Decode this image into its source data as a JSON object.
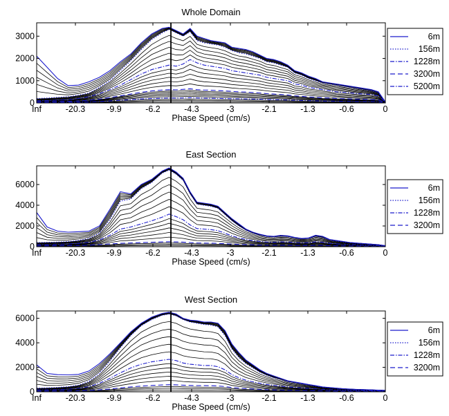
{
  "chart_data": [
    {
      "type": "line",
      "title": "Whole Domain",
      "xlabel": "Phase Speed (cm/s)",
      "ylabel": "",
      "xlim": [
        0,
        1
      ],
      "ylim": [
        0,
        3600
      ],
      "x_tick_labels": [
        "Inf",
        "-20.3",
        "-9.9",
        "-6.2",
        "-4.3",
        "-3",
        "-2.1",
        "-1.3",
        "-0.6",
        "0"
      ],
      "y_ticks": [
        0,
        1000,
        2000,
        3000
      ],
      "vertical_marker": 0.385,
      "legend": [
        {
          "name": "6m",
          "style": "solid",
          "color": "#1a1acc"
        },
        {
          "name": "156m",
          "style": "dotted",
          "color": "#1a1acc"
        },
        {
          "name": "1228m",
          "style": "dashdot",
          "color": "#1a1acc"
        },
        {
          "name": "3200m",
          "style": "dashed",
          "color": "#1a1acc"
        },
        {
          "name": "5200m",
          "style": "dashdot",
          "color": "#1a1acc"
        }
      ],
      "x": [
        0,
        0.03,
        0.06,
        0.09,
        0.12,
        0.15,
        0.18,
        0.21,
        0.24,
        0.27,
        0.3,
        0.33,
        0.36,
        0.38,
        0.4,
        0.42,
        0.44,
        0.46,
        0.48,
        0.5,
        0.52,
        0.54,
        0.56,
        0.58,
        0.6,
        0.62,
        0.64,
        0.66,
        0.68,
        0.7,
        0.72,
        0.74,
        0.76,
        0.78,
        0.8,
        0.82,
        0.84,
        0.86,
        0.88,
        0.9,
        0.92,
        0.94,
        0.96,
        0.98,
        1.0
      ],
      "series": [
        {
          "name": "6m",
          "values": [
            2100,
            1600,
            1100,
            780,
            800,
            950,
            1150,
            1450,
            1850,
            2200,
            2700,
            3100,
            3350,
            3400,
            3250,
            3100,
            3350,
            3000,
            2900,
            2800,
            2750,
            2700,
            2500,
            2450,
            2400,
            2300,
            2150,
            2000,
            1950,
            1850,
            1700,
            1450,
            1350,
            1200,
            1100,
            950,
            900,
            850,
            800,
            750,
            700,
            650,
            600,
            500,
            50
          ]
        },
        {
          "name": "156m",
          "values": [
            200,
            220,
            250,
            280,
            350,
            450,
            700,
            1000,
            1450,
            1900,
            2400,
            2850,
            3150,
            3300,
            3150,
            3000,
            3200,
            2800,
            2700,
            2650,
            2600,
            2500,
            2350,
            2250,
            2200,
            2100,
            2000,
            1850,
            1800,
            1700,
            1600,
            1350,
            1250,
            1100,
            1000,
            900,
            850,
            800,
            750,
            700,
            650,
            600,
            550,
            450,
            50
          ]
        },
        {
          "name": "1228m",
          "values": [
            100,
            110,
            130,
            150,
            200,
            280,
            420,
            600,
            800,
            1050,
            1300,
            1500,
            1620,
            1700,
            1650,
            1750,
            1950,
            1800,
            1700,
            1650,
            1600,
            1550,
            1450,
            1400,
            1350,
            1300,
            1250,
            1150,
            1100,
            1050,
            1000,
            850,
            800,
            700,
            650,
            600,
            550,
            500,
            480,
            450,
            420,
            400,
            380,
            320,
            40
          ]
        },
        {
          "name": "3200m",
          "values": [
            50,
            55,
            60,
            70,
            90,
            120,
            170,
            240,
            320,
            400,
            480,
            540,
            580,
            600,
            590,
            610,
            640,
            600,
            580,
            570,
            560,
            540,
            520,
            500,
            490,
            470,
            450,
            420,
            400,
            380,
            360,
            320,
            300,
            270,
            250,
            230,
            220,
            200,
            190,
            180,
            170,
            160,
            150,
            130,
            30
          ]
        },
        {
          "name": "5200m",
          "values": [
            20,
            22,
            25,
            28,
            35,
            45,
            65,
            90,
            120,
            150,
            180,
            200,
            215,
            220,
            218,
            225,
            235,
            222,
            215,
            210,
            205,
            200,
            190,
            185,
            180,
            175,
            168,
            158,
            150,
            142,
            135,
            120,
            112,
            102,
            95,
            88,
            84,
            78,
            74,
            70,
            66,
            62,
            58,
            50,
            10
          ]
        }
      ]
    },
    {
      "type": "line",
      "title": "East Section",
      "xlabel": "Phase Speed (cm/s)",
      "ylabel": "",
      "xlim": [
        0,
        1
      ],
      "ylim": [
        0,
        7800
      ],
      "x_tick_labels": [
        "Inf",
        "-20.3",
        "-9.9",
        "-6.2",
        "-4.3",
        "-3",
        "-2.1",
        "-1.3",
        "-0.6",
        "0"
      ],
      "y_ticks": [
        0,
        2000,
        4000,
        6000
      ],
      "vertical_marker": 0.385,
      "legend": [
        {
          "name": "6m",
          "style": "solid",
          "color": "#1a1acc"
        },
        {
          "name": "156m",
          "style": "dotted",
          "color": "#1a1acc"
        },
        {
          "name": "1228m",
          "style": "dashdot",
          "color": "#1a1acc"
        },
        {
          "name": "3200m",
          "style": "dashed",
          "color": "#1a1acc"
        }
      ],
      "x": [
        0,
        0.03,
        0.06,
        0.09,
        0.12,
        0.15,
        0.18,
        0.21,
        0.24,
        0.27,
        0.3,
        0.33,
        0.36,
        0.38,
        0.4,
        0.42,
        0.44,
        0.46,
        0.48,
        0.5,
        0.52,
        0.54,
        0.56,
        0.58,
        0.6,
        0.62,
        0.64,
        0.66,
        0.68,
        0.7,
        0.72,
        0.74,
        0.76,
        0.78,
        0.8,
        0.82,
        0.84,
        0.86,
        0.88,
        0.9,
        0.92,
        0.94,
        0.96,
        0.98,
        1.0
      ],
      "series": [
        {
          "name": "6m",
          "values": [
            3300,
            1900,
            1500,
            1400,
            1450,
            1500,
            2000,
            3600,
            5300,
            5100,
            6000,
            6500,
            7300,
            7600,
            7200,
            6600,
            5300,
            4300,
            4200,
            4100,
            3900,
            3300,
            2700,
            2200,
            1700,
            1400,
            1200,
            1050,
            1000,
            1100,
            1050,
            900,
            800,
            850,
            1100,
            1000,
            700,
            600,
            500,
            400,
            350,
            300,
            250,
            200,
            100
          ]
        },
        {
          "name": "156m",
          "values": [
            400,
            420,
            450,
            500,
            600,
            800,
            1300,
            2600,
            4400,
            4600,
            5600,
            6200,
            7100,
            7400,
            7000,
            6400,
            5100,
            4100,
            4000,
            3900,
            3700,
            3100,
            2500,
            2000,
            1600,
            1300,
            1100,
            980,
            950,
            1000,
            980,
            850,
            750,
            800,
            1000,
            900,
            650,
            550,
            450,
            380,
            320,
            280,
            230,
            180,
            90
          ]
        },
        {
          "name": "1228m",
          "values": [
            200,
            210,
            230,
            260,
            320,
            420,
            650,
            1100,
            1700,
            1900,
            2200,
            2500,
            2850,
            3150,
            2900,
            2600,
            2100,
            1750,
            1700,
            1650,
            1550,
            1300,
            1050,
            850,
            700,
            580,
            500,
            450,
            430,
            460,
            450,
            400,
            360,
            380,
            470,
            430,
            320,
            270,
            230,
            200,
            170,
            150,
            130,
            100,
            50
          ]
        },
        {
          "name": "3200m",
          "values": [
            80,
            85,
            90,
            100,
            120,
            150,
            200,
            260,
            330,
            360,
            400,
            430,
            460,
            480,
            460,
            440,
            400,
            360,
            350,
            340,
            320,
            290,
            250,
            220,
            190,
            170,
            150,
            140,
            135,
            140,
            138,
            125,
            115,
            118,
            135,
            125,
            100,
            88,
            78,
            68,
            60,
            54,
            48,
            40,
            20
          ]
        }
      ]
    },
    {
      "type": "line",
      "title": "West Section",
      "xlabel": "Phase Speed (cm/s)",
      "ylabel": "",
      "xlim": [
        0,
        1
      ],
      "ylim": [
        0,
        6600
      ],
      "x_tick_labels": [
        "Inf",
        "-20.3",
        "-9.9",
        "-6.2",
        "-4.3",
        "-3",
        "-2.1",
        "-1.3",
        "-0.6",
        "0"
      ],
      "y_ticks": [
        0,
        2000,
        4000,
        6000
      ],
      "vertical_marker": 0.385,
      "legend": [
        {
          "name": "6m",
          "style": "solid",
          "color": "#1a1acc"
        },
        {
          "name": "156m",
          "style": "dotted",
          "color": "#1a1acc"
        },
        {
          "name": "1228m",
          "style": "dashdot",
          "color": "#1a1acc"
        },
        {
          "name": "3200m",
          "style": "dashed",
          "color": "#1a1acc"
        }
      ],
      "x": [
        0,
        0.03,
        0.06,
        0.09,
        0.12,
        0.15,
        0.18,
        0.21,
        0.24,
        0.27,
        0.3,
        0.33,
        0.36,
        0.38,
        0.4,
        0.42,
        0.44,
        0.46,
        0.48,
        0.5,
        0.52,
        0.54,
        0.56,
        0.58,
        0.6,
        0.62,
        0.64,
        0.66,
        0.68,
        0.7,
        0.72,
        0.74,
        0.76,
        0.78,
        0.8,
        0.82,
        0.84,
        0.86,
        0.88,
        0.9,
        0.92,
        0.94,
        0.96,
        0.98,
        1.0
      ],
      "series": [
        {
          "name": "6m",
          "values": [
            2200,
            1500,
            1400,
            1380,
            1420,
            1700,
            2300,
            3100,
            4000,
            4900,
            5600,
            6100,
            6400,
            6500,
            6350,
            6000,
            5850,
            5800,
            5700,
            5700,
            5600,
            5000,
            3900,
            3200,
            2600,
            2200,
            1800,
            1500,
            1300,
            1100,
            900,
            800,
            700,
            600,
            500,
            400,
            350,
            300,
            250,
            220,
            200,
            180,
            160,
            140,
            120
          ]
        },
        {
          "name": "156m",
          "values": [
            300,
            320,
            360,
            420,
            550,
            850,
            1500,
            2500,
            3600,
            4600,
            5400,
            5900,
            6250,
            6350,
            6200,
            5900,
            5700,
            5600,
            5500,
            5450,
            5300,
            4600,
            3500,
            2800,
            2300,
            1950,
            1600,
            1350,
            1150,
            1000,
            830,
            740,
            650,
            560,
            470,
            380,
            330,
            280,
            240,
            210,
            190,
            170,
            150,
            130,
            110
          ]
        },
        {
          "name": "1228m",
          "values": [
            150,
            160,
            180,
            210,
            280,
            420,
            700,
            1100,
            1550,
            1950,
            2250,
            2450,
            2580,
            2650,
            2550,
            2350,
            2250,
            2200,
            2150,
            2150,
            2050,
            1800,
            1400,
            1150,
            950,
            820,
            700,
            600,
            520,
            460,
            400,
            360,
            320,
            280,
            240,
            200,
            175,
            155,
            135,
            120,
            110,
            100,
            90,
            80,
            70
          ]
        },
        {
          "name": "3200m",
          "values": [
            60,
            62,
            66,
            72,
            85,
            110,
            160,
            230,
            320,
            400,
            470,
            520,
            560,
            580,
            570,
            540,
            520,
            510,
            500,
            495,
            480,
            430,
            350,
            300,
            260,
            230,
            200,
            175,
            155,
            140,
            125,
            115,
            105,
            95,
            85,
            75,
            68,
            62,
            56,
            52,
            48,
            44,
            40,
            36,
            32
          ]
        }
      ]
    }
  ]
}
